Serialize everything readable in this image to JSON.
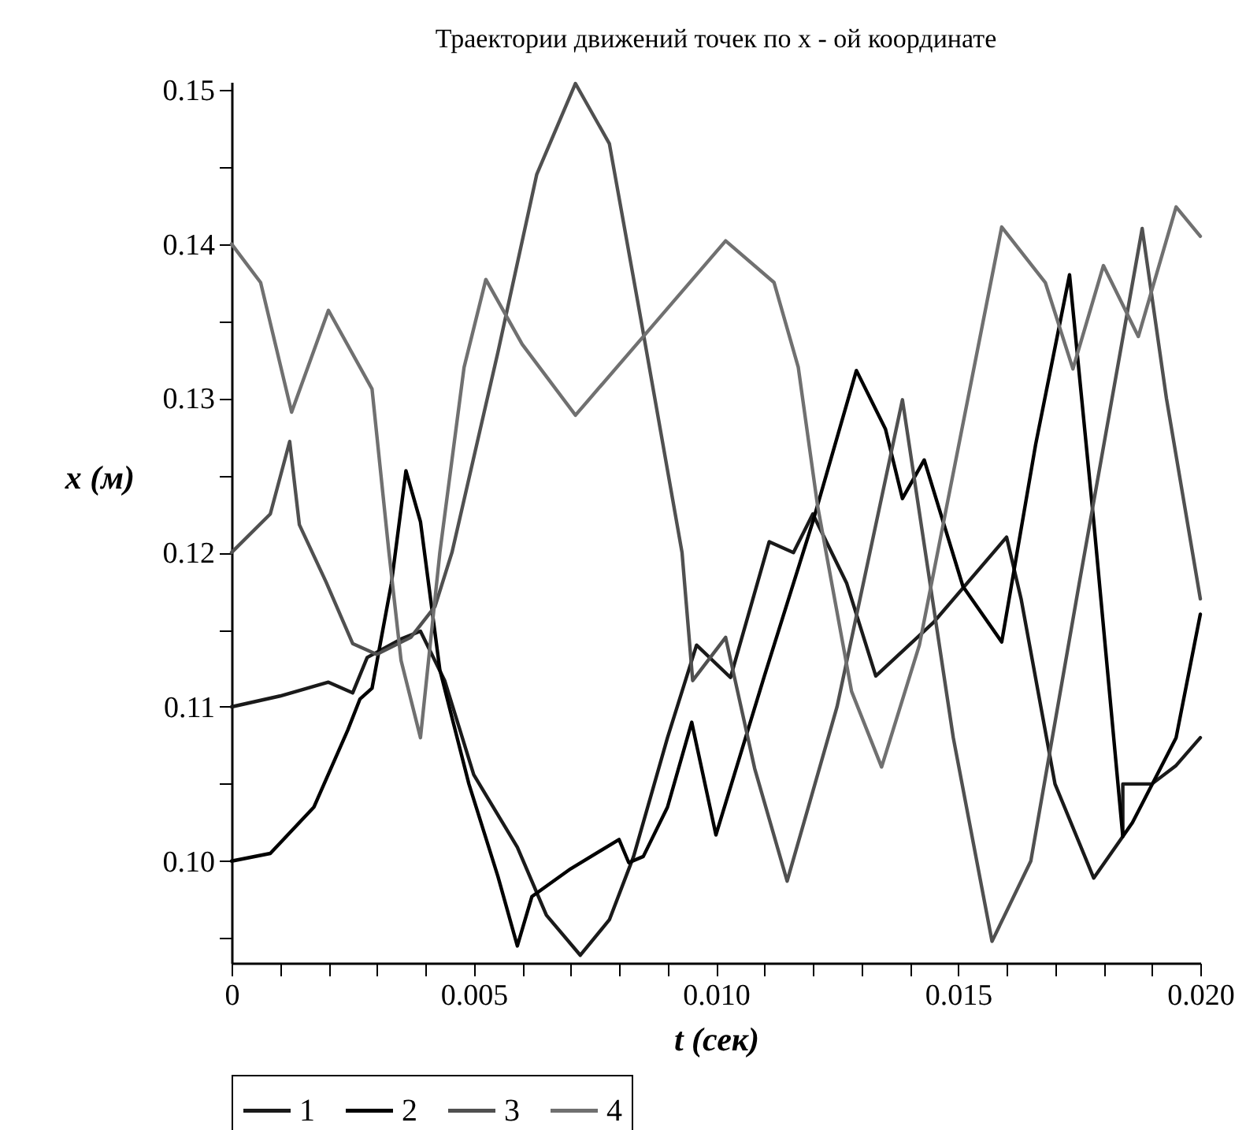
{
  "chart_data": {
    "type": "line",
    "title": "Траектории движений точек по x - ой координате",
    "xlabel": "t (сек)",
    "ylabel": "x (м)",
    "xlim": [
      0,
      0.02
    ],
    "ylim": [
      0.0934,
      0.1505
    ],
    "xticks": [
      0,
      {
        "value": 0.001,
        "label": null
      },
      {
        "value": 0.002,
        "label": null
      },
      {
        "value": 0.003,
        "label": null
      },
      {
        "value": 0.004,
        "label": null
      },
      0.005,
      {
        "value": 0.006,
        "label": null
      },
      {
        "value": 0.007,
        "label": null
      },
      {
        "value": 0.008,
        "label": null
      },
      {
        "value": 0.009,
        "label": null
      },
      {
        "value": 0.01,
        "label": "0.010"
      },
      {
        "value": 0.011,
        "label": null
      },
      {
        "value": 0.012,
        "label": null
      },
      {
        "value": 0.013,
        "label": null
      },
      {
        "value": 0.014,
        "label": null
      },
      0.015,
      {
        "value": 0.016,
        "label": null
      },
      {
        "value": 0.017,
        "label": null
      },
      {
        "value": 0.018,
        "label": null
      },
      {
        "value": 0.019,
        "label": null
      },
      {
        "value": 0.02,
        "label": "0.020"
      }
    ],
    "yticks": [
      {
        "value": 0.095,
        "label": null
      },
      {
        "value": 0.1,
        "label": "0.10"
      },
      {
        "value": 0.105,
        "label": null
      },
      0.11,
      {
        "value": 0.115,
        "label": null
      },
      0.12,
      {
        "value": 0.125,
        "label": null
      },
      0.13,
      {
        "value": 0.135,
        "label": null
      },
      0.14,
      {
        "value": 0.145,
        "label": null
      },
      0.15
    ],
    "grid": false,
    "legend": "bottom",
    "line_style": "solid",
    "series": [
      {
        "name": "1",
        "color": "#1a1a1a",
        "x": [
          0,
          0.001,
          0.002,
          0.0025,
          0.0028,
          0.0035,
          0.0039,
          0.0044,
          0.005,
          0.0059,
          0.0065,
          0.0072,
          0.0078,
          0.0083,
          0.009,
          0.0096,
          0.0103,
          0.0111,
          0.0116,
          0.012,
          0.0127,
          0.0133,
          0.0145,
          0.016,
          0.0163,
          0.017,
          0.0178,
          0.0184,
          0.0184,
          0.019,
          0.0195,
          0.02
        ],
        "values": [
          0.11,
          0.1107,
          0.1116,
          0.1109,
          0.1132,
          0.1144,
          0.1149,
          0.1117,
          0.1056,
          0.1009,
          0.0965,
          0.0939,
          0.0962,
          0.1003,
          0.108,
          0.114,
          0.1119,
          0.1207,
          0.12,
          0.1225,
          0.118,
          0.112,
          0.1155,
          0.121,
          0.117,
          0.105,
          0.0989,
          0.1016,
          0.105,
          0.105,
          0.1062,
          0.108
        ]
      },
      {
        "name": "2",
        "color": "#000000",
        "x": [
          0,
          0.0008,
          0.0017,
          0.0024,
          0.00265,
          0.0029,
          0.0033,
          0.0036,
          0.0039,
          0.0043,
          0.0049,
          0.0055,
          0.0059,
          0.0062,
          0.007,
          0.008,
          0.0082,
          0.0085,
          0.009,
          0.0095,
          0.01,
          0.011,
          0.012,
          0.0129,
          0.0135,
          0.01385,
          0.0143,
          0.0151,
          0.0159,
          0.0166,
          0.0173,
          0.0178,
          0.0184,
          0.0186,
          0.0195,
          0.02
        ],
        "values": [
          0.1,
          0.1005,
          0.1035,
          0.1085,
          0.1105,
          0.1112,
          0.118,
          0.1253,
          0.122,
          0.1124,
          0.105,
          0.099,
          0.0945,
          0.0977,
          0.0995,
          0.1014,
          0.0999,
          0.1003,
          0.1035,
          0.109,
          0.1017,
          0.112,
          0.122,
          0.1318,
          0.128,
          0.1235,
          0.126,
          0.1178,
          0.1142,
          0.127,
          0.138,
          0.122,
          0.1016,
          0.1025,
          0.108,
          0.116
        ]
      },
      {
        "name": "3",
        "color": "#505050",
        "x": [
          0,
          0.0008,
          0.0012,
          0.0014,
          0.00195,
          0.0025,
          0.003,
          0.0037,
          0.0042,
          0.00455,
          0.0055,
          0.0063,
          0.0071,
          0.0078,
          0.00844,
          0.0093,
          0.00952,
          0.0102,
          0.0108,
          0.01147,
          0.0125,
          0.01385,
          0.0149,
          0.0157,
          0.0165,
          0.0175,
          0.0188,
          0.0193,
          0.02
        ],
        "values": [
          0.12,
          0.1225,
          0.1272,
          0.1218,
          0.1181,
          0.1141,
          0.1134,
          0.1145,
          0.1165,
          0.12,
          0.133,
          0.1445,
          0.1504,
          0.1465,
          0.1353,
          0.12,
          0.1117,
          0.1145,
          0.106,
          0.0987,
          0.11,
          0.1299,
          0.108,
          0.0948,
          0.1,
          0.118,
          0.141,
          0.13,
          0.117
        ]
      },
      {
        "name": "4",
        "color": "#707070",
        "x": [
          0,
          0.0006,
          0.00124,
          0.002,
          0.0029,
          0.00325,
          0.0035,
          0.0039,
          0.0043,
          0.0048,
          0.00525,
          0.006,
          0.0071,
          0.0085,
          0.0102,
          0.0112,
          0.0117,
          0.0121,
          0.0128,
          0.01342,
          0.0142,
          0.0159,
          0.0168,
          0.01737,
          0.018,
          0.01872,
          0.0195,
          0.02
        ],
        "values": [
          0.14,
          0.1375,
          0.1291,
          0.1357,
          0.1306,
          0.12,
          0.113,
          0.108,
          0.12,
          0.132,
          0.1377,
          0.1335,
          0.1289,
          0.134,
          0.1402,
          0.1375,
          0.132,
          0.123,
          0.111,
          0.1061,
          0.114,
          0.1411,
          0.1375,
          0.1319,
          0.1386,
          0.134,
          0.1424,
          0.1405
        ]
      }
    ]
  }
}
